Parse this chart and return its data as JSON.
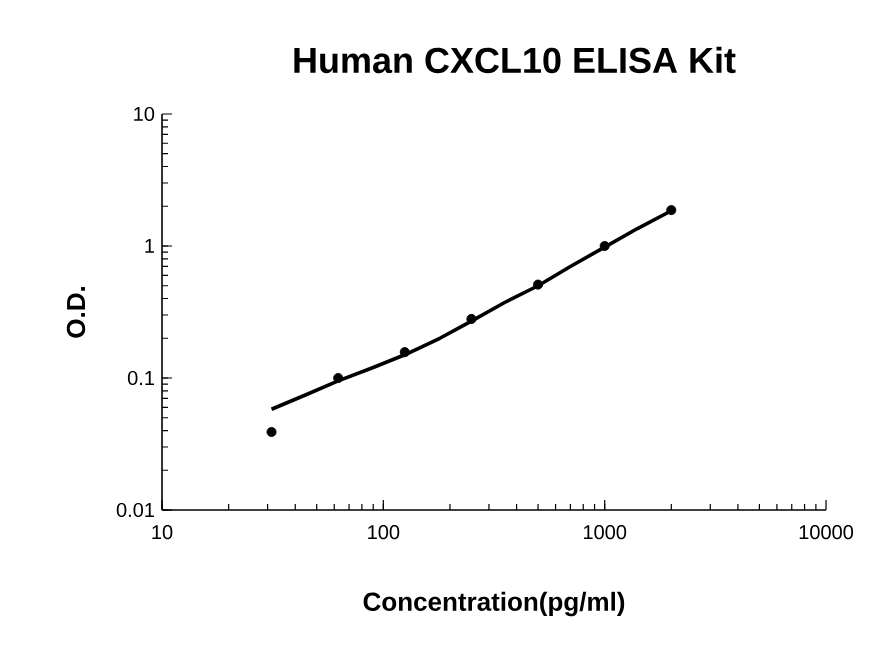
{
  "chart_data": {
    "type": "scatter",
    "title": "Human CXCL10 ELISA Kit",
    "xlabel": "Concentration(pg/ml)",
    "ylabel": "O.D.",
    "log": "xy",
    "xlim": [
      10,
      10000
    ],
    "xticks": [
      10,
      100,
      1000,
      10000
    ],
    "ylim": [
      0.01,
      10
    ],
    "yticks": [
      0.01,
      0.1,
      1,
      10
    ],
    "series": [
      {
        "marker": "circle",
        "color": "#000000",
        "x": [
          31.25,
          62.5,
          125,
          250,
          500,
          1000,
          2000
        ],
        "values": [
          0.039,
          0.1,
          0.157,
          0.28,
          0.51,
          1.0,
          1.87
        ]
      },
      {
        "type": "line",
        "marker": "none",
        "line_style": "solid",
        "color": "#000000",
        "x": [
          31.25,
          45,
          62.5,
          90,
          125,
          180,
          250,
          350,
          500,
          700,
          1000,
          1400,
          2000
        ],
        "values": [
          0.058,
          0.075,
          0.095,
          0.12,
          0.15,
          0.2,
          0.27,
          0.37,
          0.5,
          0.7,
          0.98,
          1.35,
          1.85
        ]
      }
    ]
  }
}
